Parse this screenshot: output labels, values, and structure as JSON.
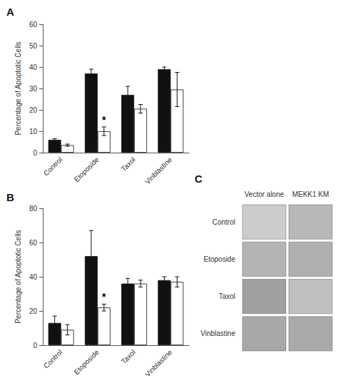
{
  "chart_data": [
    {
      "type": "bar",
      "title": "A",
      "categories": [
        "Control",
        "Etoposide",
        "Taxol",
        "Vinblastine"
      ],
      "series": [
        {
          "color": "#111111",
          "values": [
            6,
            37,
            27,
            39
          ],
          "errors": [
            0.5,
            2,
            4,
            1
          ]
        },
        {
          "color": "#ffffff",
          "values": [
            3.5,
            10,
            20.5,
            29.5
          ],
          "errors": [
            0.5,
            2,
            2,
            8
          ],
          "annotations": [
            {
              "category": "Etoposide",
              "text": "*"
            }
          ]
        }
      ],
      "ylabel": "Percentage of Apoptotic Cells",
      "ylim": [
        0,
        60
      ],
      "yticks": [
        0,
        10,
        20,
        30,
        40,
        50,
        60
      ],
      "grid": false
    },
    {
      "type": "bar",
      "title": "B",
      "categories": [
        "Control",
        "Etoposide",
        "Taxol",
        "Vinblastine"
      ],
      "series": [
        {
          "color": "#111111",
          "values": [
            13,
            52,
            36,
            38
          ],
          "errors": [
            4,
            15,
            3,
            2
          ]
        },
        {
          "color": "#ffffff",
          "values": [
            9,
            22,
            36,
            37
          ],
          "errors": [
            3,
            2,
            2,
            3
          ],
          "annotations": [
            {
              "category": "Etoposide",
              "text": "*"
            }
          ]
        }
      ],
      "ylabel": "Percentage of Apoptotic Cells",
      "ylim": [
        0,
        80
      ],
      "yticks": [
        0,
        20,
        40,
        60,
        80
      ],
      "grid": false
    },
    {
      "type": "image_grid",
      "title": "C",
      "columns": [
        "Vector alone",
        "MEKK1 KM"
      ],
      "rows": [
        "Control",
        "Etoposide",
        "Taxol",
        "Vinblastine"
      ],
      "colors": [
        [
          "#cccccc",
          "#b8b8b8"
        ],
        [
          "#b4b4b4",
          "#b0b0b0"
        ],
        [
          "#a0a0a0",
          "#c0c0c0"
        ],
        [
          "#a8a8a8",
          "#aaaaaa"
        ]
      ]
    }
  ]
}
